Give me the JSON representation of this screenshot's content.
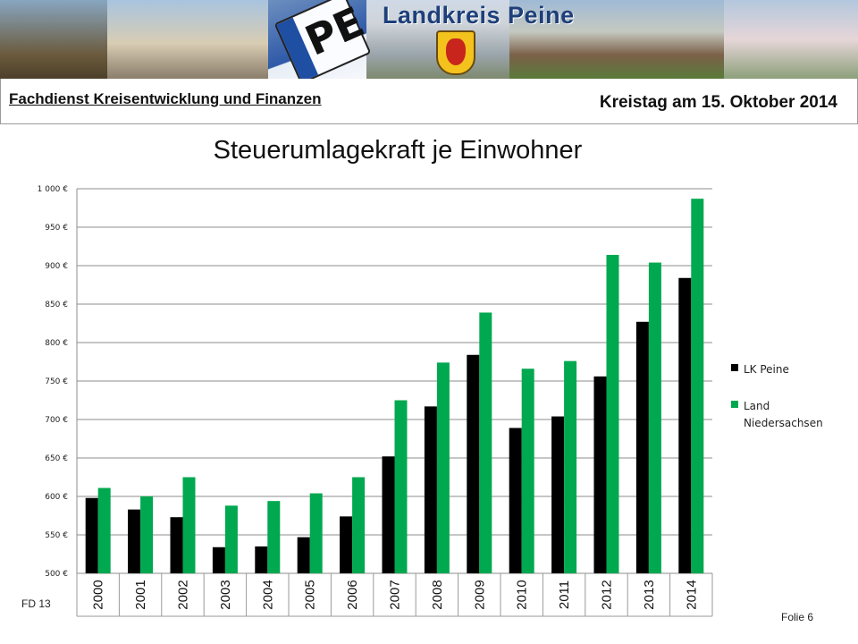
{
  "banner": {
    "title": "Landkreis Peine",
    "plate_text": "PE"
  },
  "header": {
    "department": "Fachdienst Kreisentwicklung und Finanzen",
    "meeting": "Kreistag am 15. Oktober 2014"
  },
  "footer": {
    "left": "FD 13",
    "right": "Folie 6"
  },
  "colors": {
    "lk_peine": "#000000",
    "land_niedersachsen": "#00a84f",
    "gridline": "#8c8c8c"
  },
  "chart_data": {
    "type": "bar",
    "title": "Steuerumlagekraft je Einwohner",
    "categories": [
      "2000",
      "2001",
      "2002",
      "2003",
      "2004",
      "2005",
      "2006",
      "2007",
      "2008",
      "2009",
      "2010",
      "2011",
      "2012",
      "2013",
      "2014"
    ],
    "series": [
      {
        "name": "LK Peine",
        "color": "#000000",
        "values": [
          598,
          583,
          573,
          534,
          535,
          547,
          574,
          652,
          717,
          784,
          689,
          704,
          756,
          827,
          884
        ]
      },
      {
        "name": "Land Niedersachsen",
        "color": "#00a84f",
        "values": [
          611,
          600,
          625,
          588,
          594,
          604,
          625,
          725,
          774,
          839,
          766,
          776,
          914,
          904,
          987
        ]
      }
    ],
    "ylim": [
      500,
      1000
    ],
    "yticks": [
      500,
      550,
      600,
      650,
      700,
      750,
      800,
      850,
      900,
      950,
      1000
    ],
    "ytick_labels": [
      "500 €",
      "550 €",
      "600 €",
      "650 €",
      "700 €",
      "750 €",
      "800 €",
      "850 €",
      "900 €",
      "950 €",
      "1 000 €"
    ],
    "grid": true,
    "legend_position": "right"
  }
}
